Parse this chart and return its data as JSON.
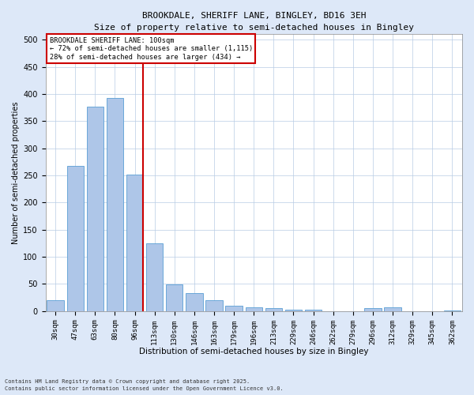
{
  "title_line1": "BROOKDALE, SHERIFF LANE, BINGLEY, BD16 3EH",
  "title_line2": "Size of property relative to semi-detached houses in Bingley",
  "xlabel": "Distribution of semi-detached houses by size in Bingley",
  "ylabel": "Number of semi-detached properties",
  "categories": [
    "30sqm",
    "47sqm",
    "63sqm",
    "80sqm",
    "96sqm",
    "113sqm",
    "130sqm",
    "146sqm",
    "163sqm",
    "179sqm",
    "196sqm",
    "213sqm",
    "229sqm",
    "246sqm",
    "262sqm",
    "279sqm",
    "296sqm",
    "312sqm",
    "329sqm",
    "345sqm",
    "362sqm"
  ],
  "values": [
    20,
    268,
    376,
    393,
    252,
    125,
    49,
    33,
    20,
    10,
    7,
    5,
    3,
    2,
    0,
    0,
    5,
    7,
    0,
    0,
    1
  ],
  "bar_color": "#aec6e8",
  "bar_edge_color": "#5a9fd4",
  "vline_color": "#cc0000",
  "ylim": [
    0,
    510
  ],
  "yticks": [
    0,
    50,
    100,
    150,
    200,
    250,
    300,
    350,
    400,
    450,
    500
  ],
  "annotation_title": "BROOKDALE SHERIFF LANE: 100sqm",
  "annotation_line1": "← 72% of semi-detached houses are smaller (1,115)",
  "annotation_line2": "28% of semi-detached houses are larger (434) →",
  "annotation_box_color": "#cc0000",
  "footer_line1": "Contains HM Land Registry data © Crown copyright and database right 2025.",
  "footer_line2": "Contains public sector information licensed under the Open Government Licence v3.0.",
  "bg_color": "#dde8f8",
  "plot_bg_color": "#ffffff"
}
